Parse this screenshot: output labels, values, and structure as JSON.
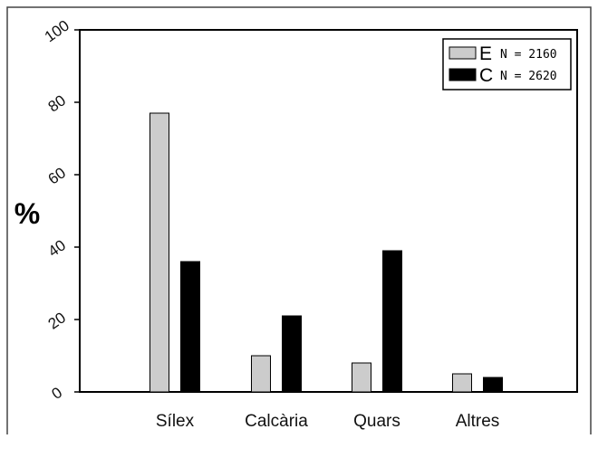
{
  "chart_data": {
    "type": "bar",
    "categories": [
      "Sílex",
      "Calcària",
      "Quars",
      "Altres"
    ],
    "series": [
      {
        "name": "E",
        "n_label": "N = 2160",
        "color": "#cccccc",
        "values": [
          77,
          10,
          8,
          5
        ]
      },
      {
        "name": "C",
        "n_label": "N = 2620",
        "color": "#000000",
        "values": [
          36,
          21,
          39,
          4
        ]
      }
    ],
    "yticks": [
      0,
      20,
      40,
      60,
      80,
      100
    ],
    "ylim": [
      0,
      100
    ],
    "ylabel": "%",
    "xlabel": "",
    "title": "",
    "legend_position": "top-right",
    "grid": false
  }
}
